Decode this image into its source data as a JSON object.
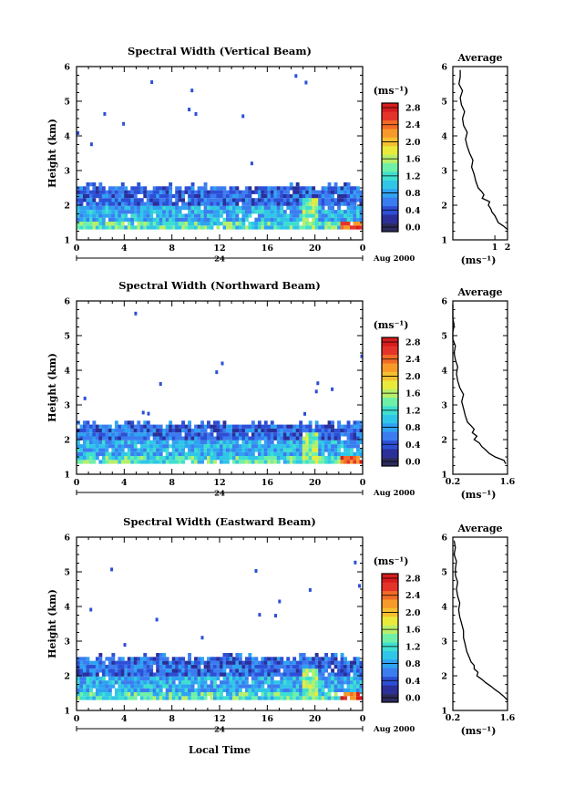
{
  "figure": {
    "xlabel": "Local Time",
    "date_label": "Aug 2000",
    "day_label": "24",
    "colorbar_unit": "(ms⁻¹)",
    "avg_title": "Average",
    "avg_xlabel": "(ms⁻¹)"
  },
  "colorbar": {
    "ticks": [
      "0.0",
      "0.4",
      "0.8",
      "1.2",
      "1.6",
      "2.0",
      "2.4",
      "2.8"
    ],
    "colors": [
      "#2c2c5e",
      "#2a2f9a",
      "#2d4fd6",
      "#3b7cf0",
      "#2fa2f2",
      "#30c6e8",
      "#3edfd0",
      "#6ff0a8",
      "#b8ef6a",
      "#eaea3a",
      "#f5c030",
      "#f79a2a",
      "#f26b26",
      "#e4342a",
      "#d81c1e"
    ]
  },
  "chart_data": [
    {
      "type": "heatmap",
      "title": "Spectral Width (Vertical Beam)",
      "ylabel": "Height (km)",
      "xticks": [
        "0",
        "4",
        "8",
        "12",
        "16",
        "20",
        "0"
      ],
      "yticks": [
        "1",
        "2",
        "3",
        "4",
        "5",
        "6"
      ],
      "xlim": [
        0,
        24
      ],
      "ylim": [
        1,
        6
      ],
      "value_range": [
        0,
        3.0
      ],
      "top_of_echo_km": 2.5,
      "avg_profile": {
        "xticks": [
          "1",
          "2"
        ],
        "xlim": [
          0,
          2
        ],
        "xscale": "log",
        "height": [
          1.3,
          1.4,
          1.5,
          1.6,
          1.7,
          1.8,
          1.9,
          2.0,
          2.1,
          2.2,
          2.3,
          2.4,
          2.5,
          2.7,
          2.9,
          3.1,
          3.3,
          3.5,
          3.7,
          3.9,
          4.1,
          4.3,
          4.5,
          4.7,
          4.9,
          5.1,
          5.3,
          5.5,
          5.7,
          5.9
        ],
        "value": [
          2.0,
          1.6,
          1.2,
          1.1,
          1.0,
          0.85,
          0.8,
          0.7,
          0.75,
          0.5,
          0.55,
          0.48,
          0.4,
          0.35,
          0.32,
          0.28,
          0.3,
          0.25,
          0.22,
          0.2,
          0.22,
          0.18,
          0.17,
          0.19,
          0.16,
          0.15,
          0.17,
          0.14,
          0.15,
          0.15
        ]
      }
    },
    {
      "type": "heatmap",
      "title": "Spectral Width (Northward Beam)",
      "ylabel": "Height (km)",
      "xticks": [
        "0",
        "4",
        "8",
        "12",
        "16",
        "20",
        "0"
      ],
      "yticks": [
        "1",
        "2",
        "3",
        "4",
        "5",
        "6"
      ],
      "xlim": [
        0,
        24
      ],
      "ylim": [
        1,
        6
      ],
      "value_range": [
        0,
        3.0
      ],
      "top_of_echo_km": 2.4,
      "avg_profile": {
        "xticks": [
          "0.2",
          "1.6"
        ],
        "xlim": [
          0.2,
          1.6
        ],
        "xscale": "log",
        "height": [
          1.3,
          1.4,
          1.5,
          1.6,
          1.7,
          1.8,
          1.9,
          2.0,
          2.1,
          2.2,
          2.3,
          2.4,
          2.5,
          2.7,
          2.9,
          3.1,
          3.3,
          3.5,
          3.7,
          3.9,
          4.1,
          4.3,
          4.5,
          4.7,
          4.9,
          5.1,
          5.3,
          5.5,
          5.7,
          5.9
        ],
        "value": [
          1.5,
          1.4,
          1.0,
          0.8,
          0.7,
          0.6,
          0.55,
          0.45,
          0.5,
          0.42,
          0.45,
          0.4,
          0.35,
          0.32,
          0.3,
          0.28,
          0.3,
          0.26,
          0.24,
          0.23,
          0.24,
          0.22,
          0.21,
          0.22,
          0.2,
          0.2,
          0.21,
          0.2,
          0.2,
          0.2
        ]
      }
    },
    {
      "type": "heatmap",
      "title": "Spectral Width (Eastward Beam)",
      "ylabel": "Height (km)",
      "xticks": [
        "0",
        "4",
        "8",
        "12",
        "16",
        "20",
        "0"
      ],
      "yticks": [
        "1",
        "2",
        "3",
        "4",
        "5",
        "6"
      ],
      "xlim": [
        0,
        24
      ],
      "ylim": [
        1,
        6
      ],
      "value_range": [
        0,
        3.0
      ],
      "top_of_echo_km": 2.5,
      "avg_profile": {
        "xticks": [
          "0.2",
          "1.6"
        ],
        "xlim": [
          0.2,
          1.6
        ],
        "xscale": "log",
        "height": [
          1.3,
          1.4,
          1.5,
          1.6,
          1.7,
          1.8,
          1.9,
          2.0,
          2.1,
          2.2,
          2.3,
          2.4,
          2.5,
          2.7,
          2.9,
          3.1,
          3.3,
          3.5,
          3.7,
          3.9,
          4.1,
          4.3,
          4.5,
          4.7,
          4.9,
          5.1,
          5.3,
          5.5,
          5.7,
          5.9
        ],
        "value": [
          1.6,
          1.4,
          1.2,
          1.0,
          0.85,
          0.7,
          0.6,
          0.5,
          0.52,
          0.45,
          0.45,
          0.4,
          0.38,
          0.34,
          0.32,
          0.3,
          0.3,
          0.28,
          0.26,
          0.25,
          0.26,
          0.24,
          0.23,
          0.24,
          0.22,
          0.22,
          0.23,
          0.21,
          0.22,
          0.21
        ]
      }
    }
  ]
}
